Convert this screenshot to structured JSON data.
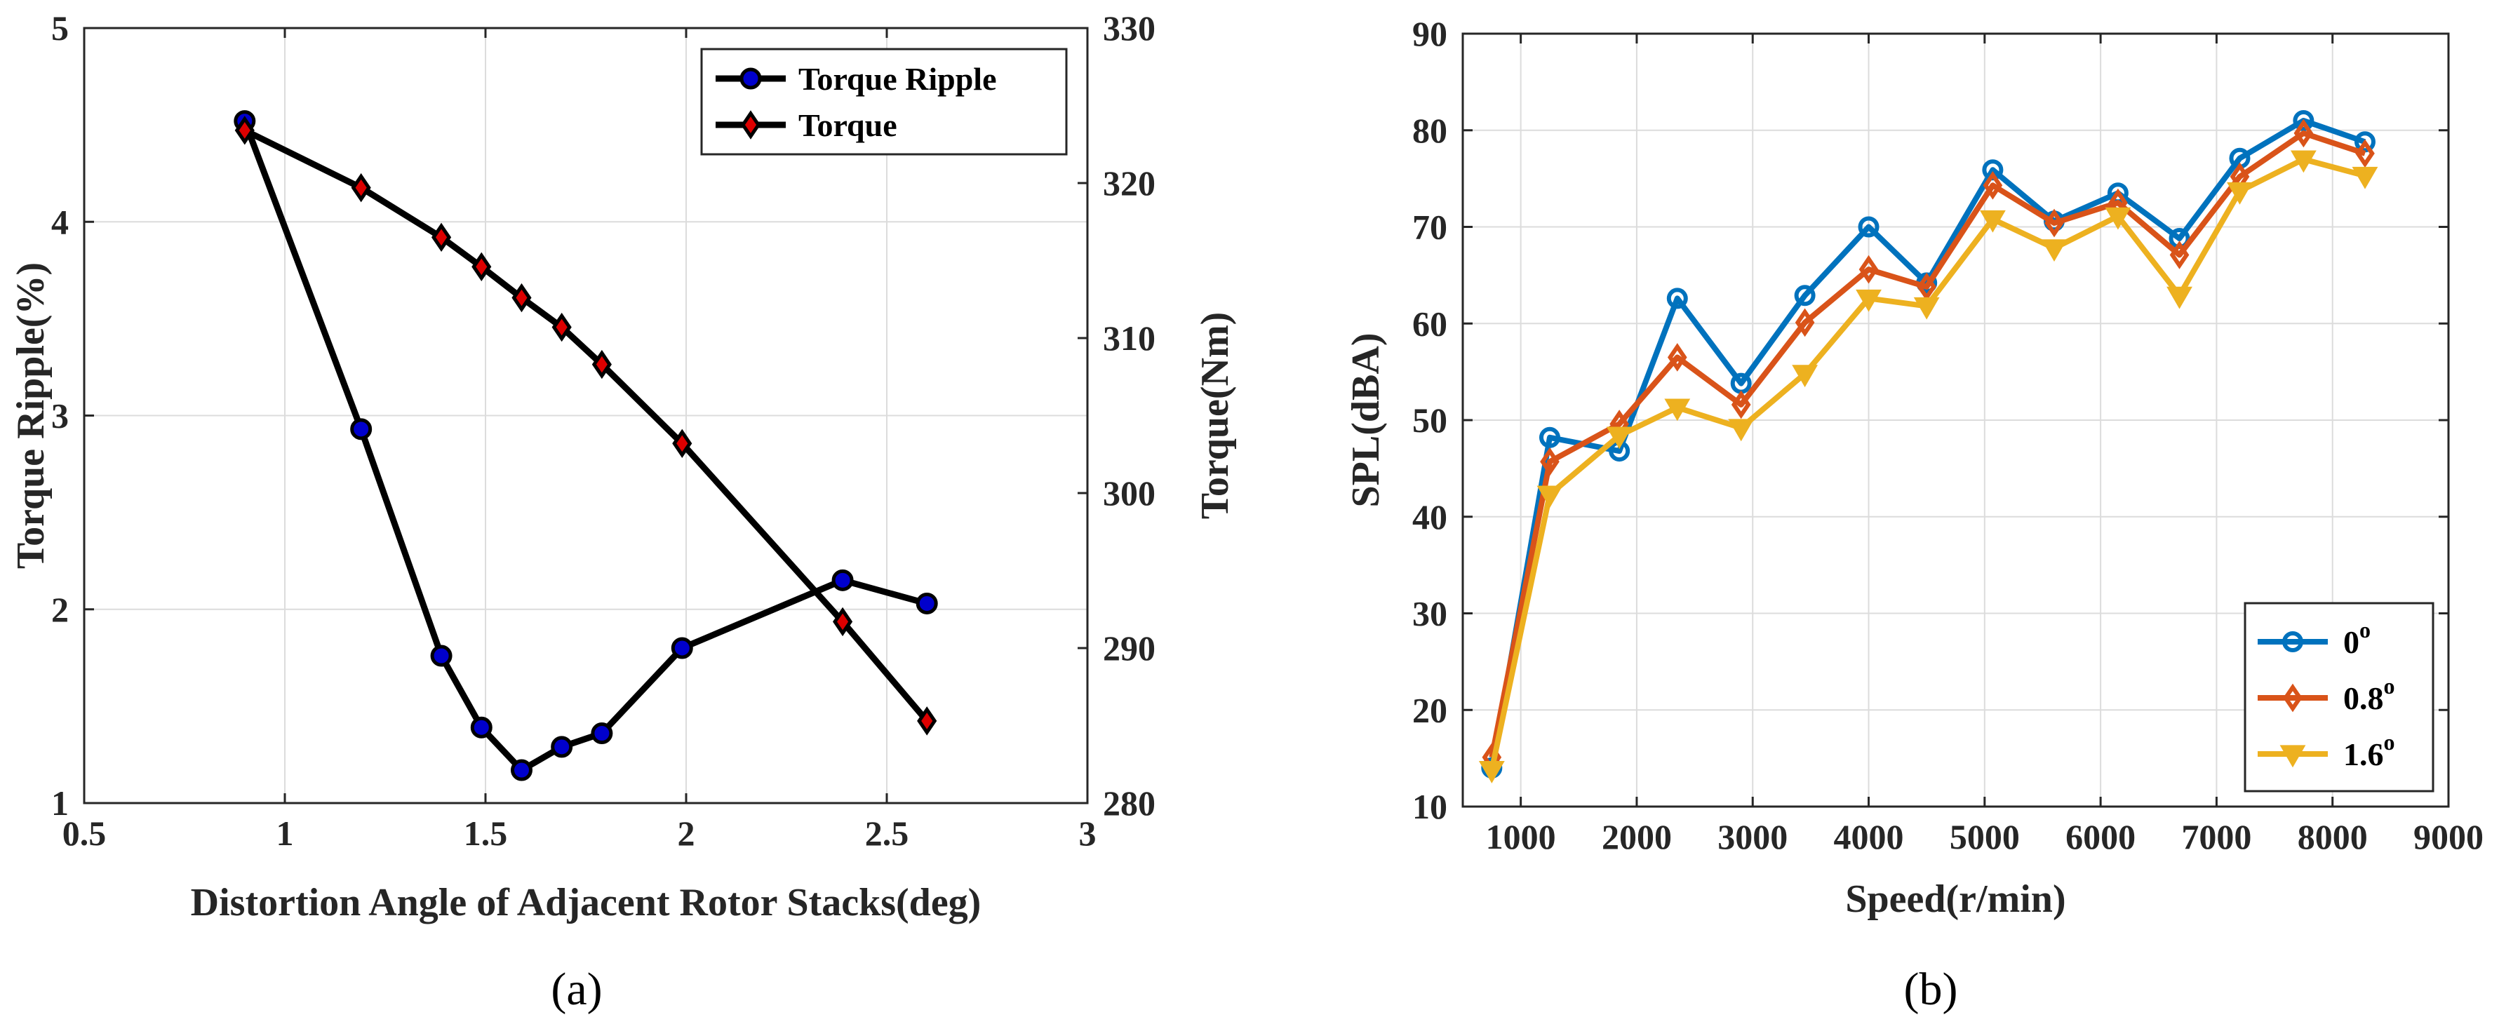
{
  "captions": {
    "a": "(a)",
    "b": "(b)"
  },
  "chart_data": [
    {
      "id": "a",
      "type": "line",
      "title": "",
      "xlabel": "Distortion Angle of Adjacent Rotor Stacks(deg)",
      "ylabel_left": "Torque Ripple(%)",
      "ylabel_right": "Torque(Nm)",
      "xlim": [
        0.5,
        3
      ],
      "ylim_left": [
        1,
        5
      ],
      "ylim_right": [
        280,
        330
      ],
      "xticks": [
        0.5,
        1,
        1.5,
        2,
        2.5,
        3
      ],
      "xtick_labels": [
        "0.5",
        "1",
        "1.5",
        "2",
        "2.5",
        "3"
      ],
      "yticks_left": [
        1,
        2,
        3,
        4,
        5
      ],
      "ytick_labels_left": [
        "1",
        "2",
        "3",
        "4",
        "5"
      ],
      "yticks_right": [
        280,
        290,
        300,
        310,
        320,
        330
      ],
      "ytick_labels_right": [
        "280",
        "290",
        "300",
        "310",
        "320",
        "330"
      ],
      "grid": true,
      "legend_position": "top-right",
      "series": [
        {
          "name": "Torque Ripple",
          "axis": "left",
          "marker": "circle",
          "line_color": "#000000",
          "marker_fill": "#0000cc",
          "x": [
            0.9,
            1.19,
            1.39,
            1.49,
            1.59,
            1.69,
            1.79,
            1.99,
            2.39,
            2.6
          ],
          "y": [
            4.52,
            2.93,
            1.76,
            1.39,
            1.17,
            1.29,
            1.36,
            1.8,
            2.15,
            2.03
          ]
        },
        {
          "name": "Torque",
          "axis": "right",
          "marker": "diamond",
          "line_color": "#000000",
          "marker_fill": "#dd0000",
          "x": [
            0.9,
            1.19,
            1.39,
            1.49,
            1.59,
            1.69,
            1.79,
            1.99,
            2.39,
            2.6
          ],
          "y": [
            323.4,
            319.7,
            316.5,
            314.6,
            312.6,
            310.7,
            308.3,
            303.2,
            291.7,
            285.3
          ]
        }
      ]
    },
    {
      "id": "b",
      "type": "line",
      "title": "",
      "xlabel": "Speed(r/min)",
      "ylabel": "SPL(dBA)",
      "xlim": [
        500,
        9000
      ],
      "ylim": [
        10,
        90
      ],
      "xticks": [
        1000,
        2000,
        3000,
        4000,
        5000,
        6000,
        7000,
        8000,
        9000
      ],
      "xtick_labels": [
        "1000",
        "2000",
        "3000",
        "4000",
        "5000",
        "6000",
        "7000",
        "8000",
        "9000"
      ],
      "yticks": [
        10,
        20,
        30,
        40,
        50,
        60,
        70,
        80,
        90
      ],
      "ytick_labels": [
        "10",
        "20",
        "30",
        "40",
        "50",
        "60",
        "70",
        "80",
        "90"
      ],
      "grid": true,
      "legend_position": "bottom-right",
      "series": [
        {
          "name": "0",
          "name_superscript": "o",
          "marker": "circle",
          "color": "#0072bd",
          "x": [
            750,
            1250,
            1850,
            2350,
            2900,
            3450,
            4000,
            4500,
            5070,
            5600,
            6150,
            6680,
            7200,
            7750,
            8280
          ],
          "y": [
            14,
            48.2,
            46.8,
            62.6,
            53.8,
            62.9,
            70,
            64.2,
            75.9,
            70.6,
            73.5,
            68.8,
            77.1,
            81,
            78.8
          ]
        },
        {
          "name": "0.8",
          "name_superscript": "o",
          "marker": "diamond",
          "color": "#d95319",
          "x": [
            750,
            1250,
            1850,
            2350,
            2900,
            3450,
            4000,
            4500,
            5070,
            5600,
            6150,
            6680,
            7200,
            7750,
            8280
          ],
          "y": [
            15.1,
            45.7,
            49.6,
            56.5,
            51.6,
            60.1,
            65.6,
            63.8,
            74.3,
            70.4,
            72.5,
            67.1,
            75.2,
            79.7,
            77.6
          ]
        },
        {
          "name": "1.6",
          "name_superscript": "o",
          "marker": "triangle-down",
          "color": "#edb120",
          "x": [
            750,
            1250,
            1850,
            2350,
            2900,
            3450,
            4000,
            4500,
            5070,
            5600,
            6150,
            6680,
            7200,
            7750,
            8280
          ],
          "y": [
            13.8,
            42.3,
            48.4,
            51.3,
            49.2,
            54.8,
            62.6,
            61.8,
            70.8,
            67.8,
            71.1,
            62.9,
            73.7,
            77,
            75.3
          ]
        }
      ]
    }
  ]
}
